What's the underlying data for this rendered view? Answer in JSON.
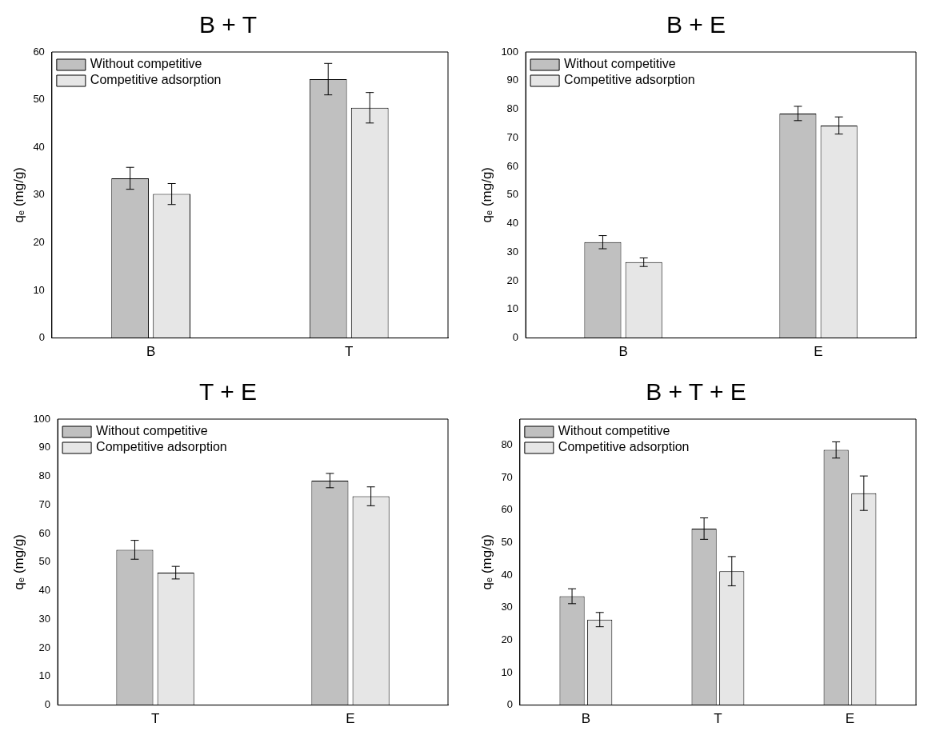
{
  "chart_data": [
    {
      "type": "bar",
      "title": "B + T",
      "ylabel": "qₑ (mg/g)",
      "categories": [
        "B",
        "T"
      ],
      "ylim": [
        0,
        60
      ],
      "yticks": [
        0,
        10,
        20,
        30,
        40,
        50,
        60
      ],
      "grid": false,
      "legend": "top left",
      "series": [
        {
          "name": "Without competitive",
          "color": "#c0c0c0",
          "values": [
            33.5,
            54.3
          ],
          "errors": [
            2.3,
            3.3
          ]
        },
        {
          "name": "Competitive adsorption",
          "color": "#e6e6e6",
          "values": [
            30.2,
            48.3
          ],
          "errors": [
            2.2,
            3.2
          ]
        }
      ]
    },
    {
      "type": "bar",
      "title": "B + E",
      "ylabel": "qₑ (mg/g)",
      "categories": [
        "B",
        "E"
      ],
      "ylim": [
        0,
        100
      ],
      "yticks": [
        0,
        10,
        20,
        30,
        40,
        50,
        60,
        70,
        80,
        90,
        100
      ],
      "grid": false,
      "legend": "top left",
      "series": [
        {
          "name": "Without competitive",
          "color": "#c0c0c0",
          "values": [
            33.5,
            78.5
          ],
          "errors": [
            2.3,
            2.5
          ]
        },
        {
          "name": "Competitive adsorption",
          "color": "#e6e6e6",
          "values": [
            26.5,
            74.3
          ],
          "errors": [
            1.5,
            3
          ]
        }
      ]
    },
    {
      "type": "bar",
      "title": "T + E",
      "ylabel": "qₑ (mg/g)",
      "categories": [
        "T",
        "E"
      ],
      "ylim": [
        0,
        100
      ],
      "yticks": [
        0,
        10,
        20,
        30,
        40,
        50,
        60,
        70,
        80,
        90,
        100
      ],
      "grid": false,
      "legend": "top left",
      "series": [
        {
          "name": "Without competitive",
          "color": "#c0c0c0",
          "values": [
            54.3,
            78.5
          ],
          "errors": [
            3.3,
            2.5
          ]
        },
        {
          "name": "Competitive adsorption",
          "color": "#e6e6e6",
          "values": [
            46.3,
            73
          ],
          "errors": [
            2.2,
            3.3
          ]
        }
      ]
    },
    {
      "type": "bar",
      "title": "B + T + E",
      "ylabel": "qₑ (mg/g)",
      "categories": [
        "B",
        "T",
        "E"
      ],
      "ylim": [
        0,
        88
      ],
      "yticks": [
        0,
        10,
        20,
        30,
        40,
        50,
        60,
        70,
        80
      ],
      "grid": false,
      "legend": "top left",
      "series": [
        {
          "name": "Without competitive",
          "color": "#c0c0c0",
          "values": [
            33.5,
            54.3,
            78.5
          ],
          "errors": [
            2.3,
            3.3,
            2.5
          ]
        },
        {
          "name": "Competitive adsorption",
          "color": "#e6e6e6",
          "values": [
            26.3,
            41.2,
            65.2
          ],
          "errors": [
            2.2,
            4.5,
            5.3
          ]
        }
      ]
    }
  ]
}
